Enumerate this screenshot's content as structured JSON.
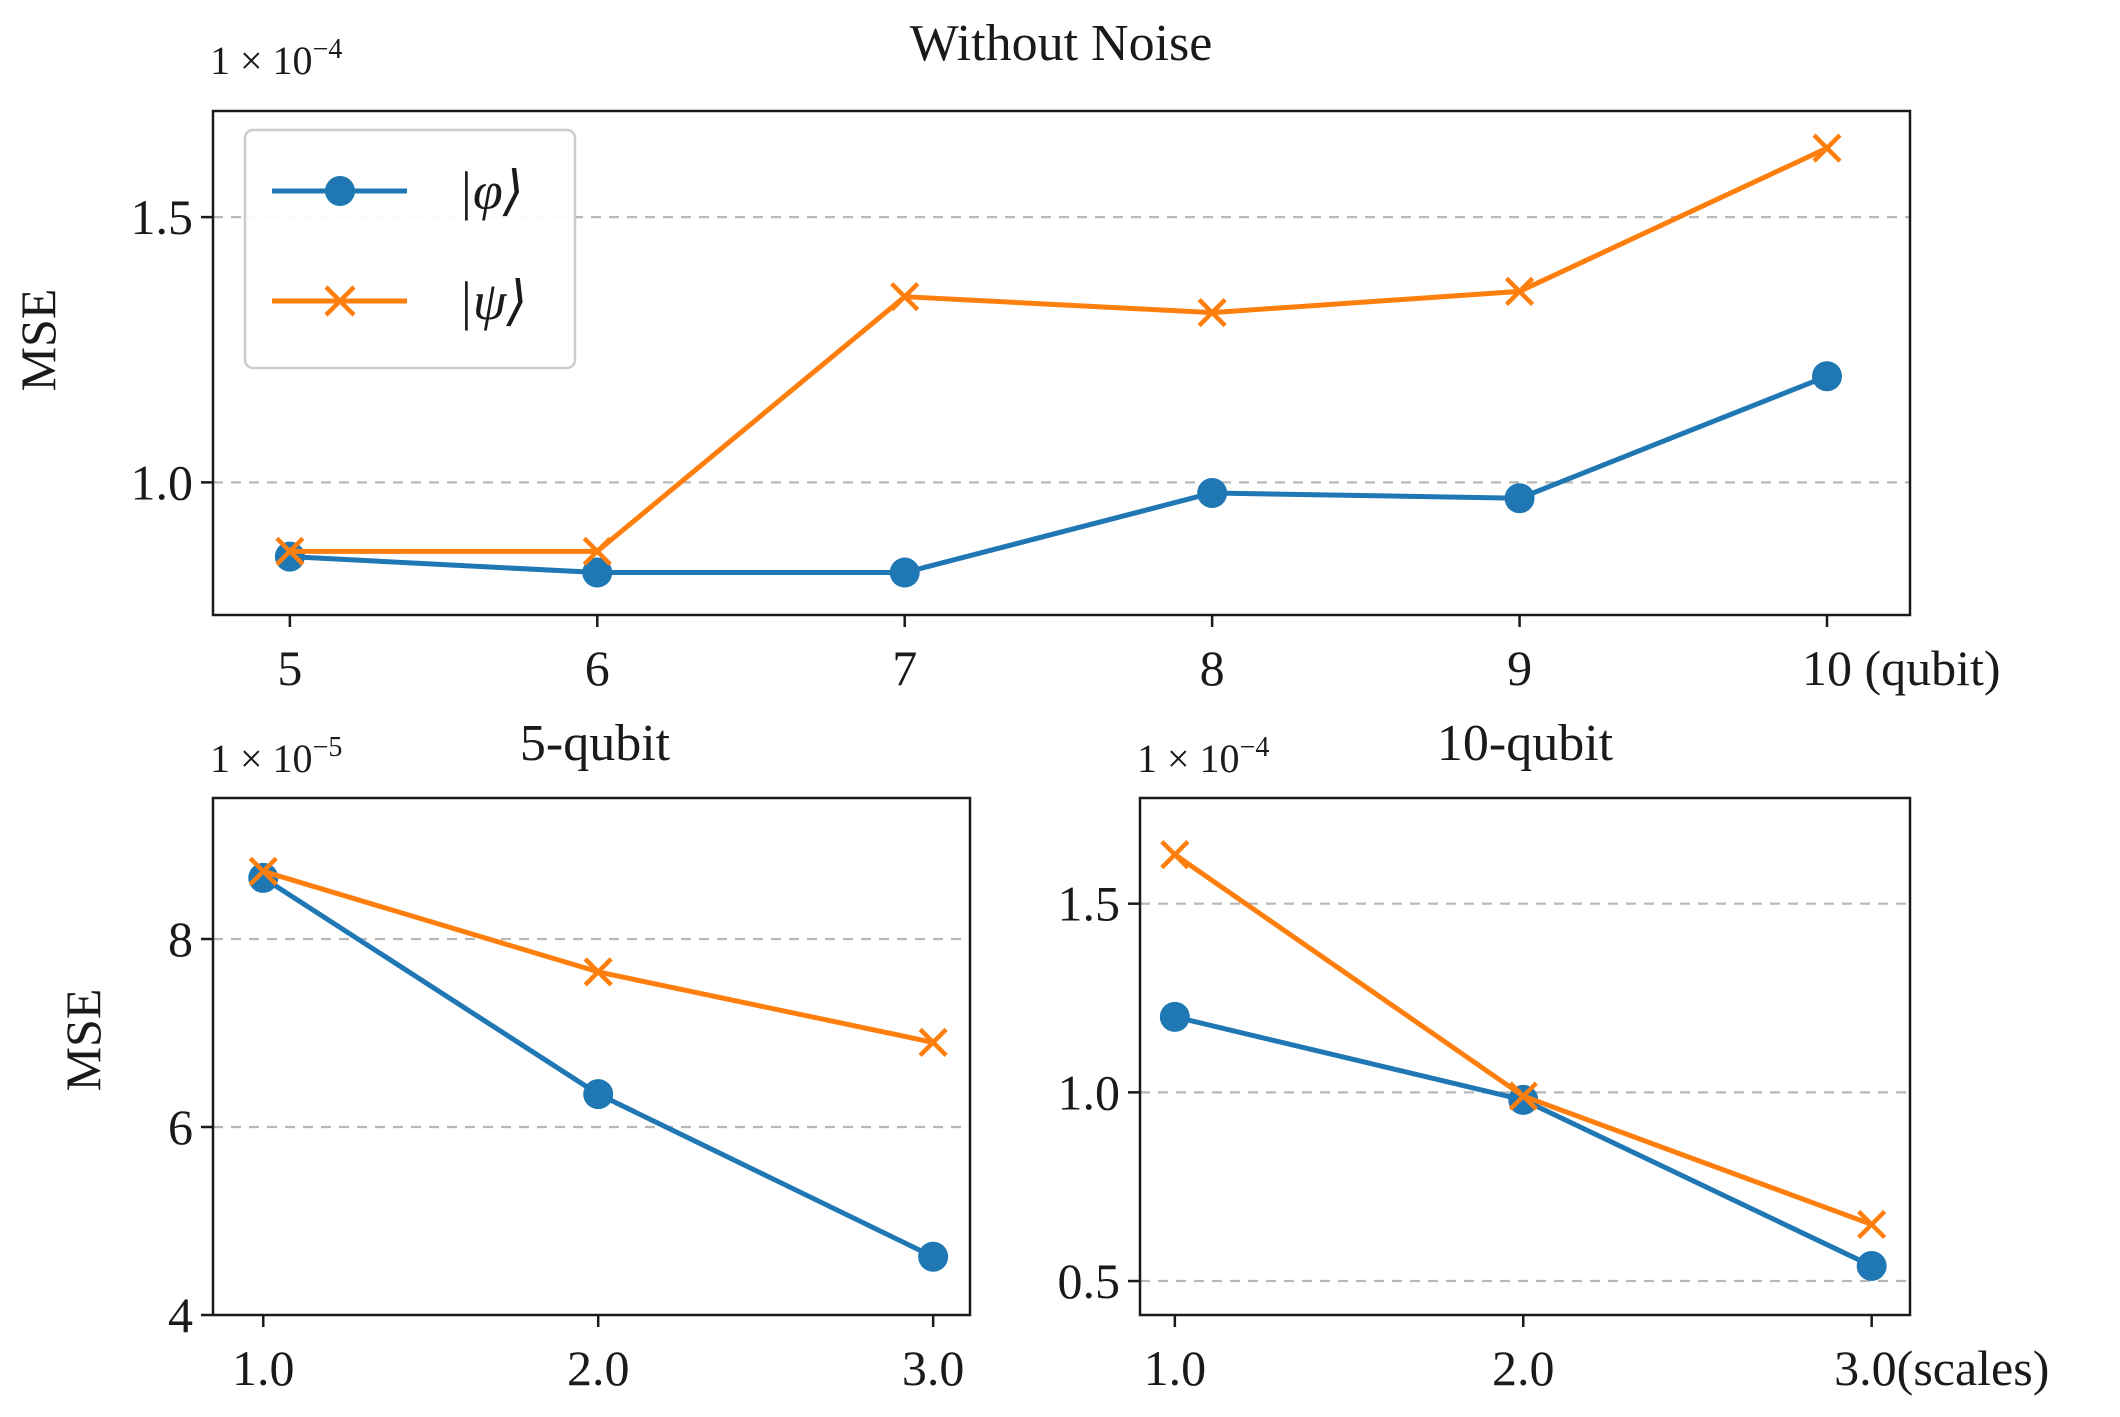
{
  "chart_data": [
    {
      "type": "line",
      "title": "Without Noise",
      "ylabel": "MSE",
      "xlabel": "",
      "x": [
        5,
        6,
        7,
        8,
        9,
        10
      ],
      "x_tick_labels": [
        "5",
        "6",
        "7",
        "8",
        "9",
        "10 (qubit)"
      ],
      "y_tick_values": [
        1.0,
        1.5
      ],
      "y_tick_labels": [
        "1.0",
        "1.5"
      ],
      "xlim": [
        4.75,
        10.27
      ],
      "ylim": [
        0.75,
        1.7
      ],
      "scale_label": "1 × 10",
      "scale_exp": "−4",
      "grid": "dashed horizontal",
      "legend": {
        "placement": "top-left",
        "entries": [
          "|φ⟩",
          "|ψ⟩"
        ]
      },
      "series": [
        {
          "name": "|φ⟩",
          "marker": "circle",
          "values": [
            0.86,
            0.83,
            0.83,
            0.98,
            0.97,
            1.2
          ]
        },
        {
          "name": "|ψ⟩",
          "marker": "x",
          "values": [
            0.87,
            0.87,
            1.35,
            1.32,
            1.36,
            1.63
          ]
        }
      ]
    },
    {
      "type": "line",
      "title": "5-qubit",
      "ylabel": "MSE",
      "xlabel": "",
      "x": [
        1.0,
        2.0,
        3.0
      ],
      "x_tick_labels": [
        "1.0",
        "2.0",
        "3.0"
      ],
      "y_tick_values": [
        4,
        6,
        8
      ],
      "y_tick_labels": [
        "4",
        "6",
        "8"
      ],
      "xlim": [
        0.85,
        3.11
      ],
      "ylim": [
        4.0,
        9.5
      ],
      "scale_label": "1 × 10",
      "scale_exp": "−5",
      "grid": "dashed horizontal",
      "series": [
        {
          "name": "|φ⟩",
          "marker": "circle",
          "values": [
            8.65,
            6.35,
            4.62
          ]
        },
        {
          "name": "|ψ⟩",
          "marker": "x",
          "values": [
            8.72,
            7.65,
            6.9
          ]
        }
      ]
    },
    {
      "type": "line",
      "title": "10-qubit",
      "ylabel": "",
      "xlabel": "",
      "x": [
        1.0,
        2.0,
        3.0
      ],
      "x_tick_labels": [
        "1.0",
        "2.0",
        "3.0(scales)"
      ],
      "y_tick_values": [
        0.5,
        1.0,
        1.5
      ],
      "y_tick_labels": [
        "0.5",
        "1.0",
        "1.5"
      ],
      "xlim": [
        0.9,
        3.11
      ],
      "ylim": [
        0.41,
        1.78
      ],
      "scale_label": "1 × 10",
      "scale_exp": "−4",
      "grid": "dashed horizontal",
      "series": [
        {
          "name": "|φ⟩",
          "marker": "circle",
          "values": [
            1.2,
            0.98,
            0.54
          ]
        },
        {
          "name": "|ψ⟩",
          "marker": "x",
          "values": [
            1.63,
            0.99,
            0.65
          ]
        }
      ]
    }
  ],
  "colors": {
    "phi": "#1f77b4",
    "psi": "#ff7f0e"
  }
}
